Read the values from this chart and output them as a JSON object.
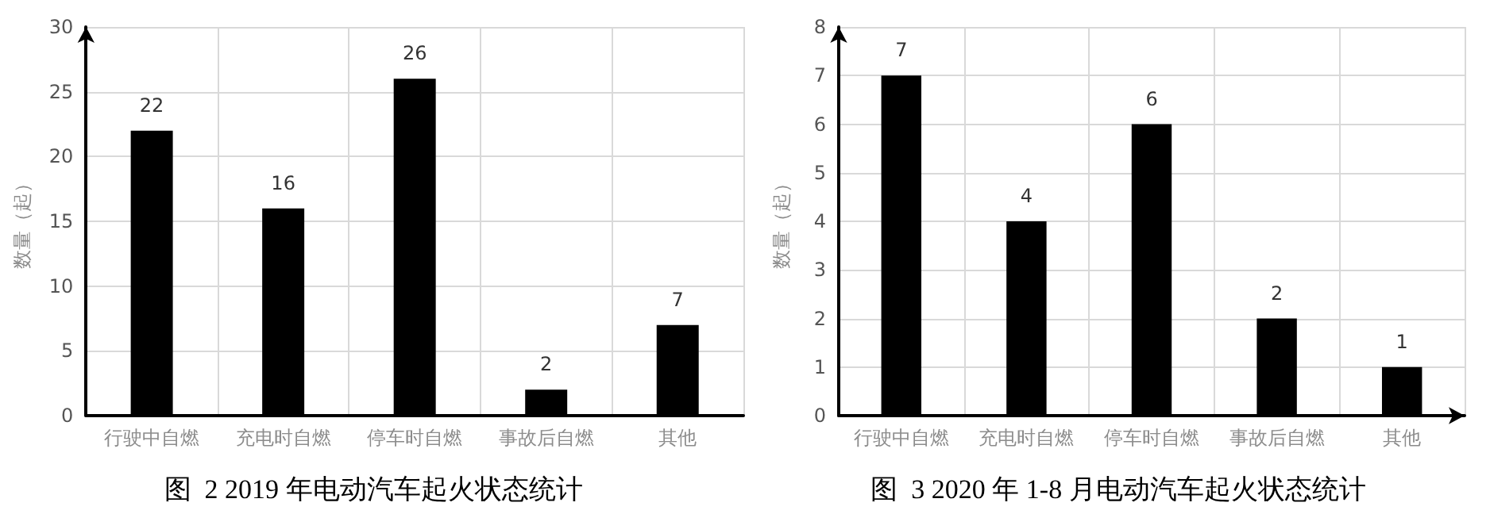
{
  "chart_data": [
    {
      "type": "bar",
      "title": "图  2 2019 年电动汽车起火状态统计",
      "ylabel": "数量（起）",
      "categories": [
        "行驶中自燃",
        "充电时自燃",
        "停车时自燃",
        "事故后自燃",
        "其他"
      ],
      "values": [
        22,
        16,
        26,
        2,
        7
      ],
      "color": "#000000",
      "ylim": [
        0,
        30
      ],
      "yticks": [
        0,
        5,
        10,
        15,
        20,
        25,
        30
      ],
      "grid": true,
      "data_labels": true
    },
    {
      "type": "bar",
      "title": "图  3 2020 年 1-8 月电动汽车起火状态统计",
      "ylabel": "数量（起）",
      "categories": [
        "行驶中自燃",
        "充电时自燃",
        "停车时自燃",
        "事故后自燃",
        "其他"
      ],
      "values": [
        7,
        4,
        6,
        2,
        1
      ],
      "color": "#000000",
      "ylim": [
        0,
        8
      ],
      "yticks": [
        0,
        1,
        2,
        3,
        4,
        5,
        6,
        7,
        8
      ],
      "grid": true,
      "data_labels": true
    }
  ]
}
